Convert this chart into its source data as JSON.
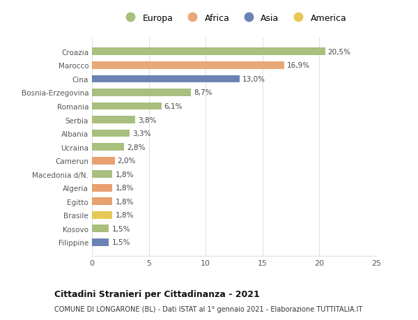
{
  "categories": [
    "Filippine",
    "Kosovo",
    "Brasile",
    "Egitto",
    "Algeria",
    "Macedonia d/N.",
    "Camerun",
    "Ucraina",
    "Albania",
    "Serbia",
    "Romania",
    "Bosnia-Erzegovina",
    "Cina",
    "Marocco",
    "Croazia"
  ],
  "values": [
    1.5,
    1.5,
    1.8,
    1.8,
    1.8,
    1.8,
    2.0,
    2.8,
    3.3,
    3.8,
    6.1,
    8.7,
    13.0,
    16.9,
    20.5
  ],
  "labels": [
    "1,5%",
    "1,5%",
    "1,8%",
    "1,8%",
    "1,8%",
    "1,8%",
    "2,0%",
    "2,8%",
    "3,3%",
    "3,8%",
    "6,1%",
    "8,7%",
    "13,0%",
    "16,9%",
    "20,5%"
  ],
  "colors": [
    "#6b82b4",
    "#a8bf7e",
    "#e8c855",
    "#e8a070",
    "#e8a070",
    "#a8bf7e",
    "#e8a070",
    "#a8bf7e",
    "#a8bf7e",
    "#a8bf7e",
    "#a8bf7e",
    "#a8bf7e",
    "#6b82b4",
    "#e8a878",
    "#a8bf7e"
  ],
  "continent_colors": {
    "Europa": "#a8bf7e",
    "Africa": "#e8a878",
    "Asia": "#6b82b4",
    "America": "#e8c855"
  },
  "title": "Cittadini Stranieri per Cittadinanza - 2021",
  "subtitle": "COMUNE DI LONGARONE (BL) - Dati ISTAT al 1° gennaio 2021 - Elaborazione TUTTITALIA.IT",
  "xlim": [
    0,
    25
  ],
  "xticks": [
    0,
    5,
    10,
    15,
    20,
    25
  ],
  "background_color": "#ffffff",
  "grid_color": "#e0e0e0"
}
